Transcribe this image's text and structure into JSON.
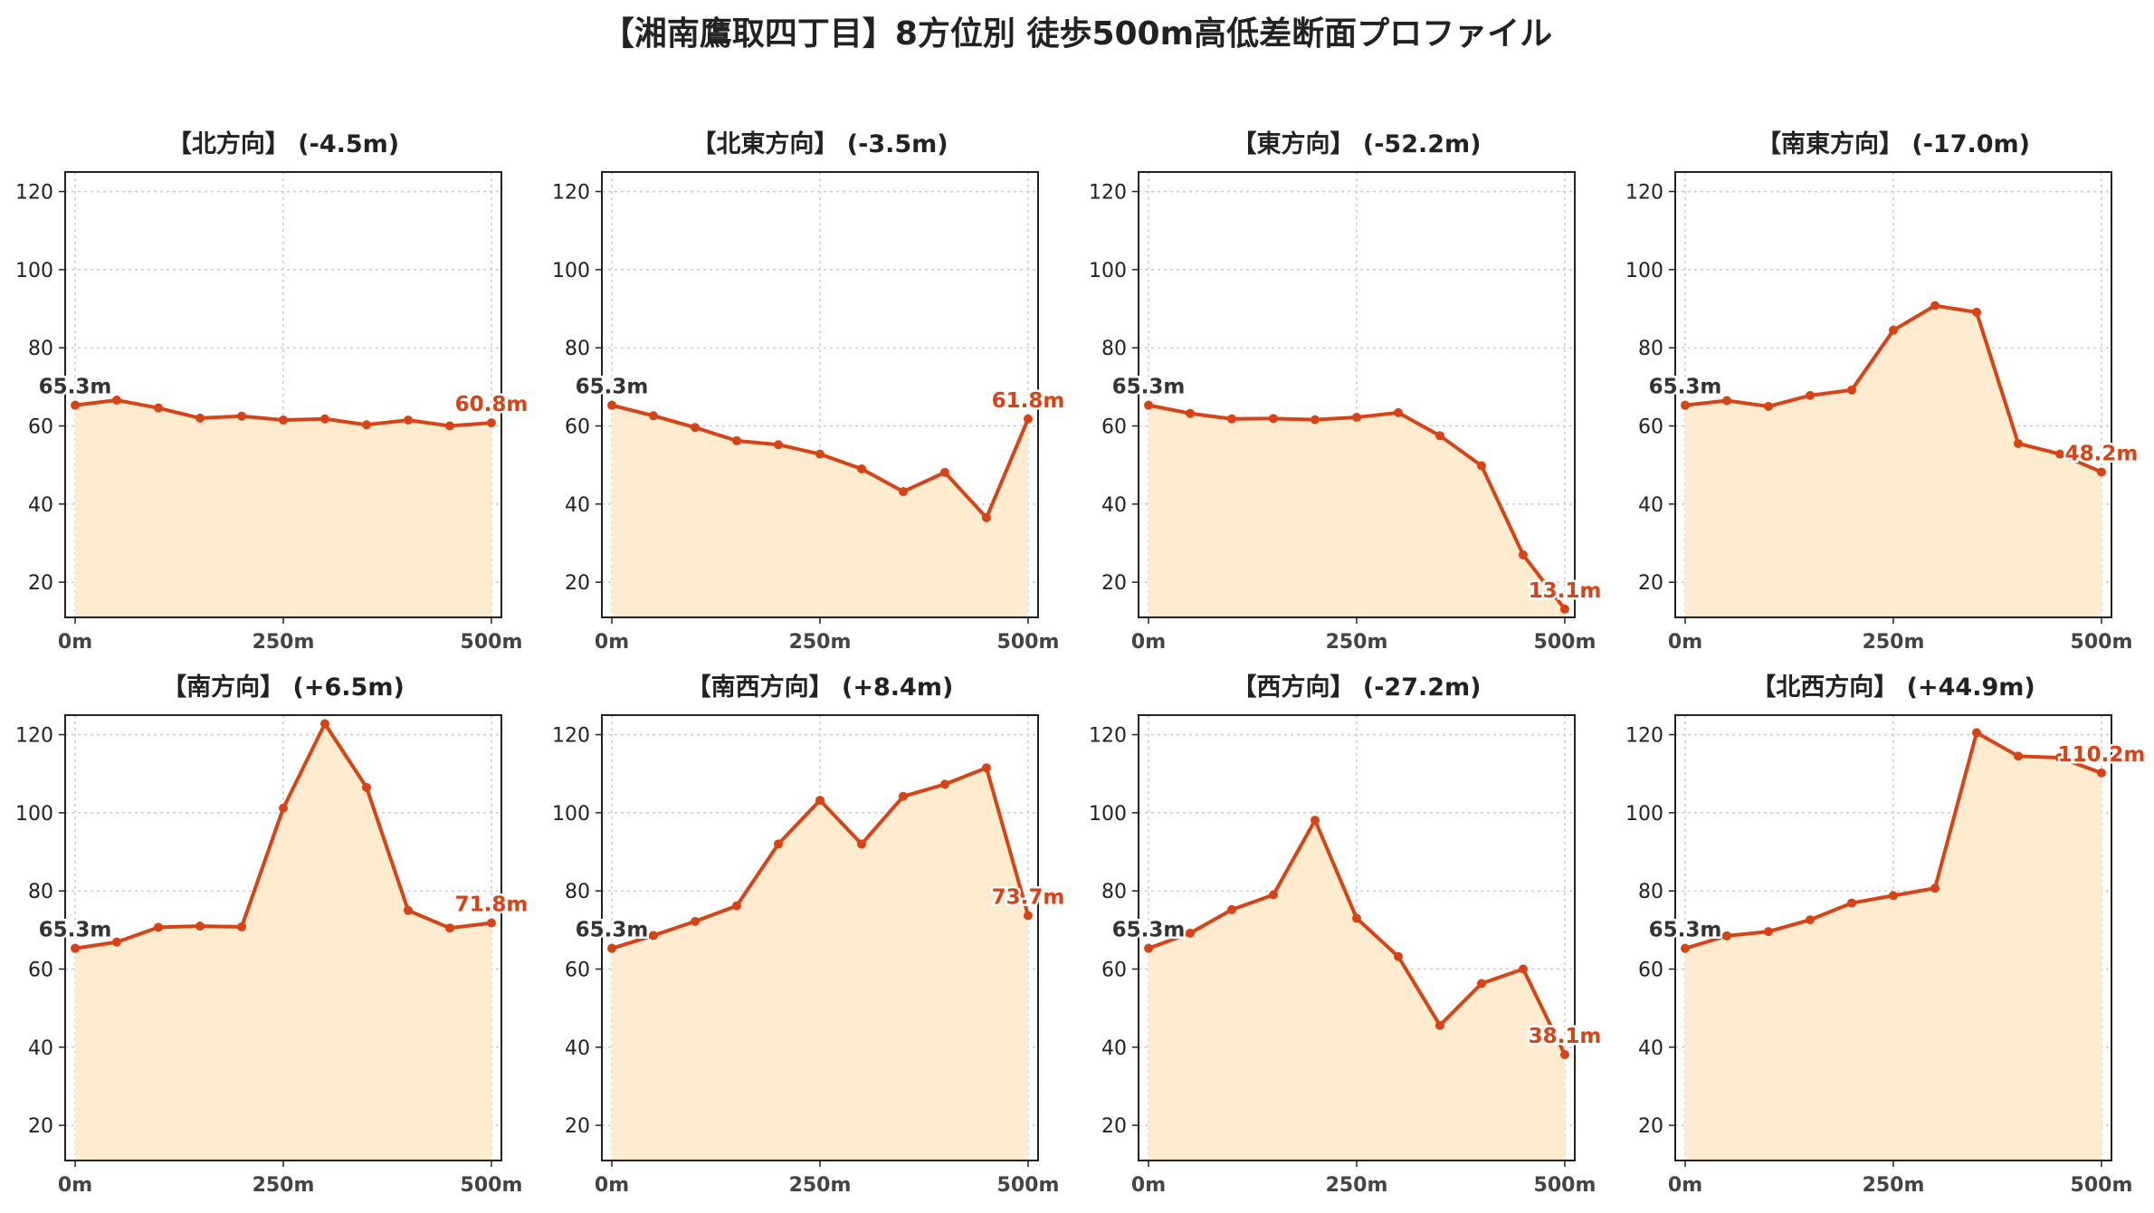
{
  "title": "【湘南鷹取四丁目】8方位別 徒歩500m高低差断面プロファイル",
  "colors": {
    "line": "#d84315",
    "fill": "#ffecd0",
    "start_label": "#333333",
    "end_label": "#d84315",
    "grid": "#cccccc"
  },
  "chart_data": [
    {
      "type": "area",
      "title": "【北方向】 (-4.5m)",
      "x": [
        0,
        50,
        100,
        150,
        200,
        250,
        300,
        350,
        400,
        450,
        500
      ],
      "y": [
        65.3,
        66.6,
        64.6,
        62.0,
        62.5,
        61.5,
        61.8,
        60.3,
        61.5,
        60.0,
        60.8
      ],
      "start_label": "65.3m",
      "end_label": "60.8m",
      "ylim": [
        11,
        125
      ],
      "xlim": [
        -12,
        512
      ],
      "yticks": [
        "20",
        "40",
        "60",
        "80",
        "100",
        "120"
      ],
      "xticks": [
        "0m",
        "250m",
        "500m"
      ],
      "grid": true
    },
    {
      "type": "area",
      "title": "【北東方向】 (-3.5m)",
      "x": [
        0,
        50,
        100,
        150,
        200,
        250,
        300,
        350,
        400,
        450,
        500
      ],
      "y": [
        65.3,
        62.6,
        59.6,
        56.2,
        55.2,
        52.8,
        49.0,
        43.2,
        48.1,
        36.5,
        61.8
      ],
      "start_label": "65.3m",
      "end_label": "61.8m",
      "ylim": [
        11,
        125
      ],
      "xlim": [
        -12,
        512
      ],
      "yticks": [
        "20",
        "40",
        "60",
        "80",
        "100",
        "120"
      ],
      "xticks": [
        "0m",
        "250m",
        "500m"
      ],
      "grid": true
    },
    {
      "type": "area",
      "title": "【東方向】 (-52.2m)",
      "x": [
        0,
        50,
        100,
        150,
        200,
        250,
        300,
        350,
        400,
        450,
        500
      ],
      "y": [
        65.3,
        63.2,
        61.8,
        61.9,
        61.6,
        62.2,
        63.4,
        57.5,
        49.8,
        27.0,
        13.1
      ],
      "start_label": "65.3m",
      "end_label": "13.1m",
      "ylim": [
        11,
        125
      ],
      "xlim": [
        -12,
        512
      ],
      "yticks": [
        "20",
        "40",
        "60",
        "80",
        "100",
        "120"
      ],
      "xticks": [
        "0m",
        "250m",
        "500m"
      ],
      "grid": true
    },
    {
      "type": "area",
      "title": "【南東方向】 (-17.0m)",
      "x": [
        0,
        50,
        100,
        150,
        200,
        250,
        300,
        350,
        400,
        450,
        500
      ],
      "y": [
        65.3,
        66.5,
        65.0,
        67.8,
        69.2,
        84.5,
        90.8,
        89.1,
        55.5,
        52.8,
        48.2
      ],
      "start_label": "65.3m",
      "end_label": "48.2m",
      "ylim": [
        11,
        125
      ],
      "xlim": [
        -12,
        512
      ],
      "yticks": [
        "20",
        "40",
        "60",
        "80",
        "100",
        "120"
      ],
      "xticks": [
        "0m",
        "250m",
        "500m"
      ],
      "grid": true
    },
    {
      "type": "area",
      "title": "【南方向】 (+6.5m)",
      "x": [
        0,
        50,
        100,
        150,
        200,
        250,
        300,
        350,
        400,
        450,
        500
      ],
      "y": [
        65.3,
        66.9,
        70.7,
        71.0,
        70.8,
        101.2,
        122.8,
        106.5,
        75.0,
        70.5,
        71.8
      ],
      "start_label": "65.3m",
      "end_label": "71.8m",
      "ylim": [
        11,
        125
      ],
      "xlim": [
        -12,
        512
      ],
      "yticks": [
        "20",
        "40",
        "60",
        "80",
        "100",
        "120"
      ],
      "xticks": [
        "0m",
        "250m",
        "500m"
      ],
      "grid": true
    },
    {
      "type": "area",
      "title": "【南西方向】 (+8.4m)",
      "x": [
        0,
        50,
        100,
        150,
        200,
        250,
        300,
        350,
        400,
        450,
        500
      ],
      "y": [
        65.3,
        68.6,
        72.2,
        76.2,
        92.0,
        103.2,
        92.0,
        104.2,
        107.3,
        111.5,
        73.7
      ],
      "start_label": "65.3m",
      "end_label": "73.7m",
      "ylim": [
        11,
        125
      ],
      "xlim": [
        -12,
        512
      ],
      "yticks": [
        "20",
        "40",
        "60",
        "80",
        "100",
        "120"
      ],
      "xticks": [
        "0m",
        "250m",
        "500m"
      ],
      "grid": true
    },
    {
      "type": "area",
      "title": "【西方向】 (-27.2m)",
      "x": [
        0,
        50,
        100,
        150,
        200,
        250,
        300,
        350,
        400,
        450,
        500
      ],
      "y": [
        65.3,
        69.2,
        75.2,
        79.0,
        98.1,
        73.0,
        63.2,
        45.6,
        56.3,
        60.0,
        38.1
      ],
      "start_label": "65.3m",
      "end_label": "38.1m",
      "ylim": [
        11,
        125
      ],
      "xlim": [
        -12,
        512
      ],
      "yticks": [
        "20",
        "40",
        "60",
        "80",
        "100",
        "120"
      ],
      "xticks": [
        "0m",
        "250m",
        "500m"
      ],
      "grid": true
    },
    {
      "type": "area",
      "title": "【北西方向】 (+44.9m)",
      "x": [
        0,
        50,
        100,
        150,
        200,
        250,
        300,
        350,
        400,
        450,
        500
      ],
      "y": [
        65.3,
        68.5,
        69.6,
        72.6,
        76.9,
        78.8,
        80.7,
        120.5,
        114.5,
        114.1,
        110.2
      ],
      "start_label": "65.3m",
      "end_label": "110.2m",
      "ylim": [
        11,
        125
      ],
      "xlim": [
        -12,
        512
      ],
      "yticks": [
        "20",
        "40",
        "60",
        "80",
        "100",
        "120"
      ],
      "xticks": [
        "0m",
        "250m",
        "500m"
      ],
      "grid": true
    }
  ]
}
